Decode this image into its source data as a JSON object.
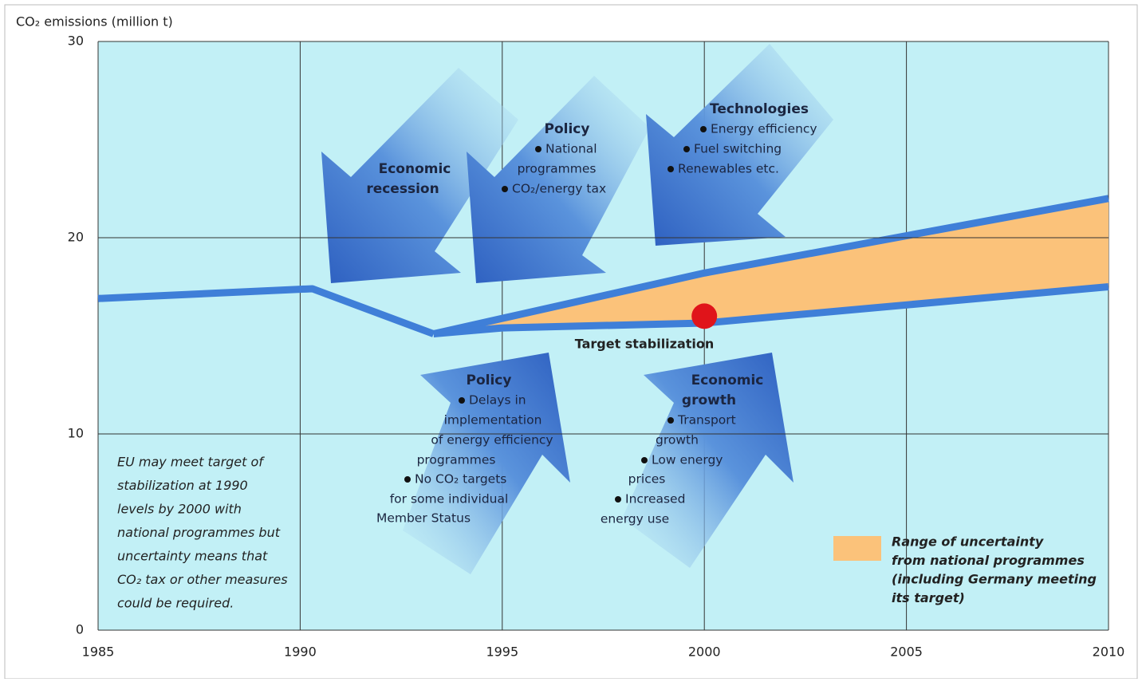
{
  "chart_data": {
    "type": "line",
    "y_label": "CO₂ emissions (million t)",
    "xlim": [
      1985,
      2010
    ],
    "xticks": [
      1985,
      1990,
      1995,
      2000,
      2005,
      2010
    ],
    "ylim": [
      0,
      30
    ],
    "yticks": [
      0,
      10,
      20,
      30
    ],
    "grid": true,
    "series": [
      {
        "color": "#3f7fd8",
        "x": [
          1985,
          1990.3,
          1993.3
        ],
        "values": [
          16.9,
          17.4,
          15.1
        ]
      },
      {
        "color": "#3f7fd8",
        "x": [
          1993.3,
          2000,
          2010
        ],
        "values": [
          15.1,
          18.2,
          22
        ]
      },
      {
        "color": "#3f7fd8",
        "x": [
          1993.3,
          1995,
          2000,
          2010
        ],
        "values": [
          15.1,
          15.4,
          15.65,
          17.5
        ]
      }
    ],
    "band": {
      "color": "#fbc27a",
      "x": [
        1994.5,
        2000,
        2010
      ],
      "lower": [
        15.3,
        15.65,
        17.5
      ],
      "upper": [
        15.6,
        18.2,
        22
      ],
      "legend_lines": [
        "Range of uncertainty",
        "from national programmes",
        "(including Germany meeting",
        "its target)"
      ]
    },
    "target": {
      "x": 2000,
      "y": 16,
      "color": "#e0141a",
      "label": "Target stabilization"
    },
    "note": [
      "EU may meet target of",
      "stabilization at 1990",
      "levels by 2000 with",
      "national programmes but",
      "uncertainty means that",
      "CO₂ tax or other measures",
      "could be required."
    ],
    "annotations": [
      {
        "title": [
          "Economic",
          "recession"
        ],
        "items": []
      },
      {
        "title": [
          "Policy"
        ],
        "items": [
          [
            "National",
            "programmes"
          ],
          [
            "CO₂/energy tax"
          ]
        ]
      },
      {
        "title": [
          "Technologies"
        ],
        "items": [
          [
            "Energy efficiency"
          ],
          [
            "Fuel switching"
          ],
          [
            "Renewables etc."
          ]
        ]
      },
      {
        "title": [
          "Policy"
        ],
        "items": [
          [
            "Delays in",
            "implementation",
            "of energy efficiency",
            "programmes"
          ],
          [
            "No CO₂ targets",
            "for some individual",
            "Member Status"
          ]
        ]
      },
      {
        "title": [
          "Economic",
          "growth"
        ],
        "items": [
          [
            "Transport",
            "growth"
          ],
          [
            "Low energy",
            "prices"
          ],
          [
            "Increased",
            "energy use"
          ]
        ]
      }
    ]
  }
}
